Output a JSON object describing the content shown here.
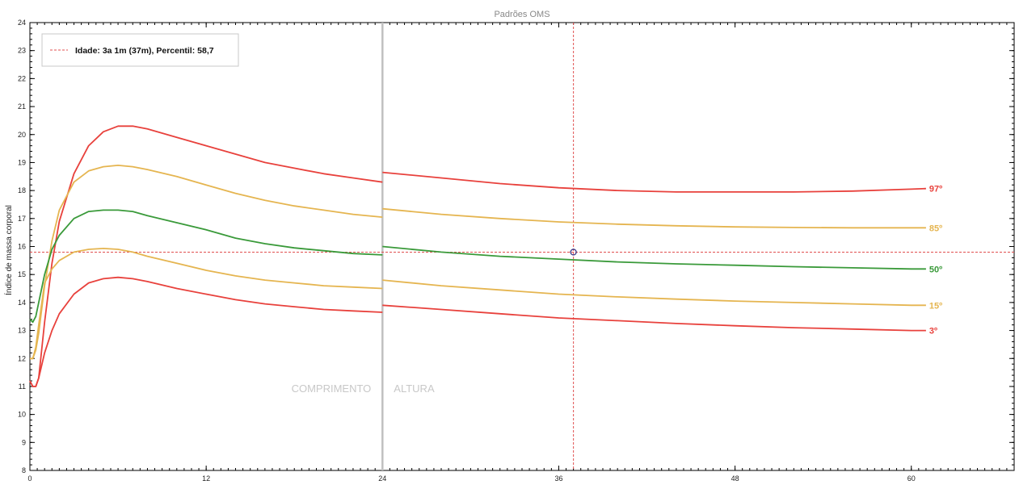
{
  "chart_data": {
    "type": "line",
    "title": "Padrões OMS",
    "xlabel": "",
    "ylabel": "Índice de massa corporal",
    "xlim": [
      0,
      67
    ],
    "ylim": [
      8,
      24
    ],
    "x_ticks": [
      0,
      12,
      24,
      36,
      48,
      60
    ],
    "y_ticks": [
      8,
      9,
      10,
      11,
      12,
      13,
      14,
      15,
      16,
      17,
      18,
      19,
      20,
      21,
      22,
      23,
      24
    ],
    "grid": false,
    "legend_position": "top-left",
    "legend": [
      {
        "label": "Idade: 3a 1m (37m), Percentil: 58,7",
        "color": "#e05050",
        "style": "dashed"
      }
    ],
    "section_labels": [
      "COMPRIMENTO",
      "ALTURA"
    ],
    "divider_x": 24,
    "marker": {
      "x": 37,
      "y": 15.8
    },
    "series": [
      {
        "name": "97º",
        "color": "#e8413c",
        "x": [
          0,
          0.2,
          0.4,
          0.6,
          1,
          1.5,
          2,
          3,
          4,
          5,
          6,
          7,
          8,
          10,
          12,
          14,
          16,
          18,
          20,
          22,
          24
        ],
        "y": [
          11.2,
          11.0,
          11.0,
          11.3,
          13.3,
          15.4,
          16.9,
          18.6,
          19.6,
          20.1,
          20.3,
          20.3,
          20.2,
          19.9,
          19.6,
          19.3,
          19.0,
          18.8,
          18.6,
          18.45,
          18.3
        ],
        "x2": [
          24,
          28,
          32,
          36,
          40,
          44,
          48,
          52,
          56,
          60,
          61
        ],
        "y2": [
          18.65,
          18.45,
          18.25,
          18.1,
          18.0,
          17.95,
          17.95,
          17.95,
          17.98,
          18.05,
          18.07
        ]
      },
      {
        "name": "85º",
        "color": "#e5b550",
        "x": [
          0,
          0.2,
          0.4,
          0.6,
          1,
          1.5,
          2,
          3,
          4,
          5,
          6,
          7,
          8,
          10,
          12,
          14,
          16,
          18,
          20,
          22,
          24
        ],
        "y": [
          12.0,
          12.0,
          12.3,
          12.9,
          14.6,
          16.2,
          17.3,
          18.3,
          18.7,
          18.85,
          18.9,
          18.85,
          18.75,
          18.5,
          18.2,
          17.9,
          17.65,
          17.45,
          17.3,
          17.15,
          17.05
        ],
        "x2": [
          24,
          28,
          32,
          36,
          40,
          44,
          48,
          52,
          56,
          60,
          61
        ],
        "y2": [
          17.35,
          17.15,
          17.0,
          16.88,
          16.8,
          16.74,
          16.7,
          16.68,
          16.67,
          16.67,
          16.67
        ]
      },
      {
        "name": "50º",
        "color": "#3a9a3a",
        "x": [
          0,
          0.2,
          0.4,
          0.6,
          1,
          1.5,
          2,
          3,
          4,
          5,
          6,
          7,
          8,
          10,
          12,
          14,
          16,
          18,
          20,
          22,
          24
        ],
        "y": [
          13.4,
          13.3,
          13.5,
          14.0,
          15.0,
          15.9,
          16.4,
          17.0,
          17.25,
          17.3,
          17.3,
          17.25,
          17.1,
          16.85,
          16.6,
          16.3,
          16.1,
          15.95,
          15.85,
          15.75,
          15.7
        ],
        "x2": [
          24,
          28,
          32,
          36,
          40,
          44,
          48,
          52,
          56,
          60,
          61
        ],
        "y2": [
          16.0,
          15.8,
          15.65,
          15.55,
          15.45,
          15.38,
          15.33,
          15.28,
          15.24,
          15.2,
          15.2
        ]
      },
      {
        "name": "15º",
        "color": "#e5b550",
        "x": [
          0,
          0.2,
          0.4,
          0.6,
          1,
          1.5,
          2,
          3,
          4,
          5,
          6,
          7,
          8,
          10,
          12,
          14,
          16,
          18,
          20,
          22,
          24
        ],
        "y": [
          12.0,
          12.0,
          12.4,
          13.2,
          14.7,
          15.2,
          15.5,
          15.8,
          15.9,
          15.93,
          15.9,
          15.8,
          15.65,
          15.4,
          15.15,
          14.95,
          14.8,
          14.7,
          14.6,
          14.55,
          14.5
        ],
        "x2": [
          24,
          28,
          32,
          36,
          40,
          44,
          48,
          52,
          56,
          60,
          61
        ],
        "y2": [
          14.8,
          14.6,
          14.45,
          14.3,
          14.2,
          14.12,
          14.05,
          14.0,
          13.95,
          13.9,
          13.9
        ]
      },
      {
        "name": "3º",
        "color": "#e8413c",
        "x": [
          0,
          0.2,
          0.4,
          0.6,
          1,
          1.5,
          2,
          3,
          4,
          5,
          6,
          7,
          8,
          10,
          12,
          14,
          16,
          18,
          20,
          22,
          24
        ],
        "y": [
          11.2,
          11.0,
          11.0,
          11.3,
          12.2,
          13.0,
          13.6,
          14.3,
          14.7,
          14.85,
          14.9,
          14.85,
          14.75,
          14.5,
          14.3,
          14.1,
          13.95,
          13.85,
          13.75,
          13.7,
          13.65
        ],
        "x2": [
          24,
          28,
          32,
          36,
          40,
          44,
          48,
          52,
          56,
          60,
          61
        ],
        "y2": [
          13.9,
          13.75,
          13.6,
          13.45,
          13.35,
          13.25,
          13.17,
          13.1,
          13.05,
          13.0,
          13.0
        ]
      }
    ]
  }
}
